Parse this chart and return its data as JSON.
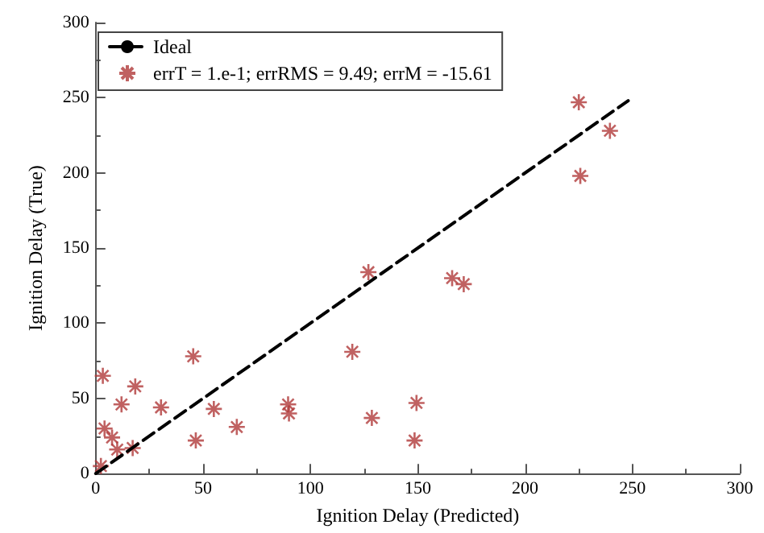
{
  "chart_data": {
    "type": "scatter",
    "xlabel": "Ignition Delay (Predicted)",
    "ylabel": "Ignition Delay (True)",
    "xlim": [
      0,
      300
    ],
    "ylim": [
      0,
      300
    ],
    "xticks": [
      0,
      50,
      100,
      150,
      200,
      250,
      300
    ],
    "yticks": [
      0,
      50,
      100,
      150,
      200,
      250,
      300
    ],
    "grid": false,
    "legend": "top left",
    "marker": "cross",
    "series": [
      {
        "name": "Ideal",
        "type": "line",
        "color": "#000000",
        "line_style": "dashed",
        "marker": "none",
        "x": [
          0,
          248
        ],
        "values": [
          0,
          248
        ]
      },
      {
        "name": "errT = 1.e-1; errRMS = 9.49; errM = -15.61",
        "color": "#b03a3a",
        "x": [
          3.3,
          4.1,
          7.6,
          10,
          12,
          18.4,
          17.2,
          2.4,
          30.4,
          45.4,
          46.6,
          55,
          65.7,
          89.6,
          90,
          119.5,
          127,
          128.6,
          149.4,
          148.5,
          166,
          171.4,
          225,
          225.7,
          239.5
        ],
        "values": [
          65,
          30,
          24,
          16,
          46,
          58,
          17,
          5,
          44,
          78,
          22,
          43,
          31,
          46,
          40,
          81,
          134,
          37,
          47,
          22,
          130,
          126,
          247,
          198,
          228
        ]
      }
    ]
  }
}
